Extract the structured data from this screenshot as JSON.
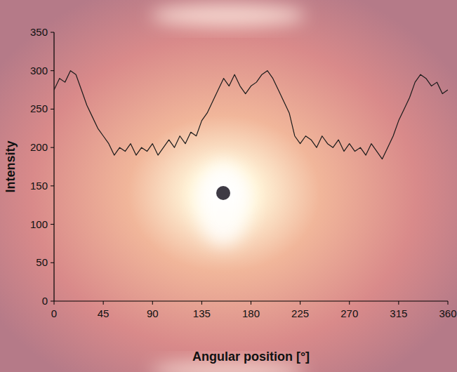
{
  "chart_data": {
    "type": "line",
    "x_label": "Angular position [°]",
    "y_label": "Intensity",
    "x": [
      0,
      5,
      10,
      15,
      20,
      25,
      30,
      35,
      40,
      45,
      50,
      55,
      60,
      65,
      70,
      75,
      80,
      85,
      90,
      95,
      100,
      105,
      110,
      115,
      120,
      125,
      130,
      135,
      140,
      145,
      150,
      155,
      160,
      165,
      170,
      175,
      180,
      185,
      190,
      195,
      200,
      205,
      210,
      215,
      220,
      225,
      230,
      235,
      240,
      245,
      250,
      255,
      260,
      265,
      270,
      275,
      280,
      285,
      290,
      295,
      300,
      305,
      310,
      315,
      320,
      325,
      330,
      335,
      340,
      345,
      350,
      355,
      360
    ],
    "values": [
      275,
      290,
      285,
      300,
      295,
      275,
      255,
      240,
      225,
      215,
      205,
      190,
      200,
      195,
      205,
      190,
      200,
      195,
      205,
      190,
      200,
      210,
      200,
      215,
      205,
      220,
      215,
      235,
      245,
      260,
      275,
      290,
      280,
      295,
      280,
      270,
      280,
      285,
      295,
      300,
      290,
      275,
      260,
      245,
      215,
      205,
      215,
      210,
      200,
      215,
      205,
      200,
      210,
      195,
      205,
      195,
      200,
      190,
      205,
      195,
      185,
      200,
      215,
      235,
      250,
      265,
      285,
      295,
      290,
      280,
      285,
      270,
      275
    ],
    "color": "#1a1a1a",
    "xlim": [
      0,
      360
    ],
    "xticks": [
      0,
      45,
      90,
      135,
      180,
      225,
      270,
      315,
      360
    ],
    "ylim": [
      0,
      350
    ],
    "yticks": [
      0,
      50,
      100,
      150,
      200,
      250,
      300,
      350
    ],
    "grid": false
  }
}
